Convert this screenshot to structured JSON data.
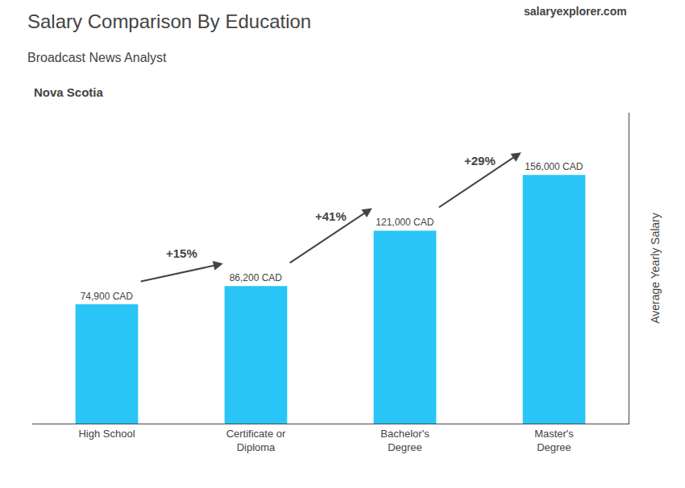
{
  "chart_data": {
    "type": "bar",
    "title": "Salary Comparison By Education",
    "subtitle": "Broadcast News Analyst",
    "ylabel": "Average Yearly Salary",
    "categories": [
      "High School",
      "Certificate or\nDiploma",
      "Bachelor's\nDegree",
      "Master's\nDegree"
    ],
    "values": [
      74900,
      86200,
      121000,
      156000
    ],
    "value_labels": [
      "74,900 CAD",
      "86,200 CAD",
      "121,000 CAD",
      "156,000 CAD"
    ],
    "data_labels": true,
    "color": "#29c5f6",
    "ylim": [
      0,
      195000
    ],
    "yticks": [],
    "tick_labels": "x",
    "grid": false,
    "annotations": [
      {
        "text": "Nova Scotia"
      },
      {
        "text": "salaryexplorer.com"
      },
      {
        "text": "+15%",
        "from": "High School",
        "to": "Certificate or\nDiploma"
      },
      {
        "text": "+41%",
        "from": "Certificate or\nDiploma",
        "to": "Bachelor's\nDegree"
      },
      {
        "text": "+29%",
        "from": "Bachelor's\nDegree",
        "to": "Master's\nDegree"
      }
    ]
  }
}
